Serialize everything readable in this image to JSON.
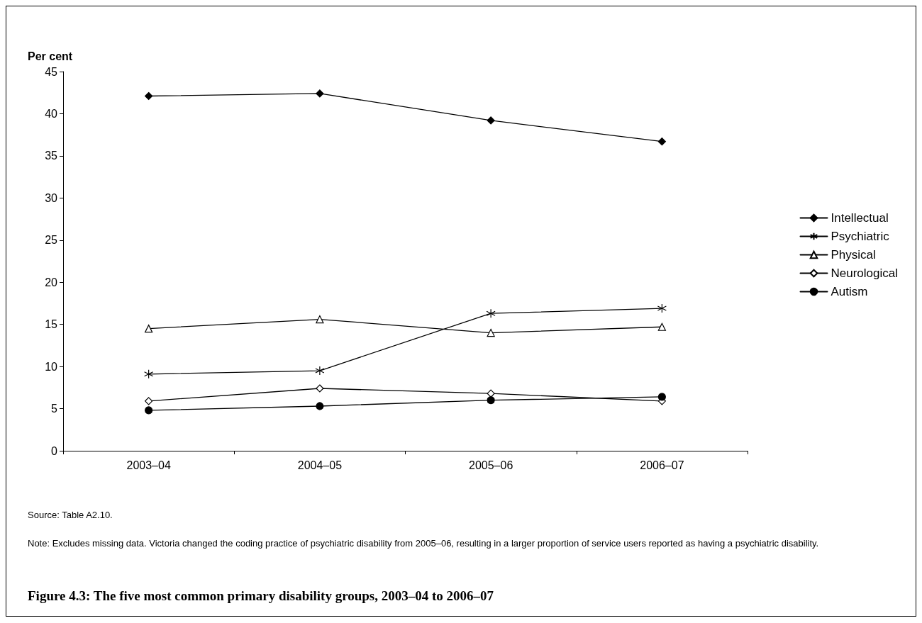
{
  "chart_data": {
    "type": "line",
    "title": "Figure 4.3: The five most common primary disability groups, 2003–04 to 2006–07",
    "ylabel": "Per cent",
    "categories": [
      "2003–04",
      "2004–05",
      "2005–06",
      "2006–07"
    ],
    "series": [
      {
        "name": "Intellectual",
        "color": "#000000",
        "marker": "diamond",
        "values": [
          42.1,
          42.4,
          39.2,
          36.7
        ]
      },
      {
        "name": "Psychiatric",
        "color": "#000000",
        "marker": "star",
        "values": [
          9.1,
          9.5,
          16.3,
          16.9
        ]
      },
      {
        "name": "Physical",
        "color": "#000000",
        "marker": "triangle",
        "values": [
          14.5,
          15.6,
          14.0,
          14.7
        ]
      },
      {
        "name": "Neurological",
        "color": "#000000",
        "marker": "diamond",
        "values": [
          5.9,
          7.4,
          6.8,
          5.9
        ]
      },
      {
        "name": "Autism",
        "color": "#000000",
        "marker": "circle",
        "values": [
          4.8,
          5.3,
          6.0,
          6.4
        ]
      }
    ],
    "ylim": [
      0,
      45
    ],
    "yticks": [
      0,
      5,
      10,
      15,
      20,
      25,
      30,
      35,
      40,
      45
    ],
    "grid": false,
    "legend": "right",
    "line_style": "solid",
    "annotations": [
      "Source: Table A2.10.",
      "Note: Excludes missing data. Victoria changed the coding practice of psychiatric disability from 2005–06, resulting in a larger proportion of service users reported as having a psychiatric disability."
    ]
  }
}
